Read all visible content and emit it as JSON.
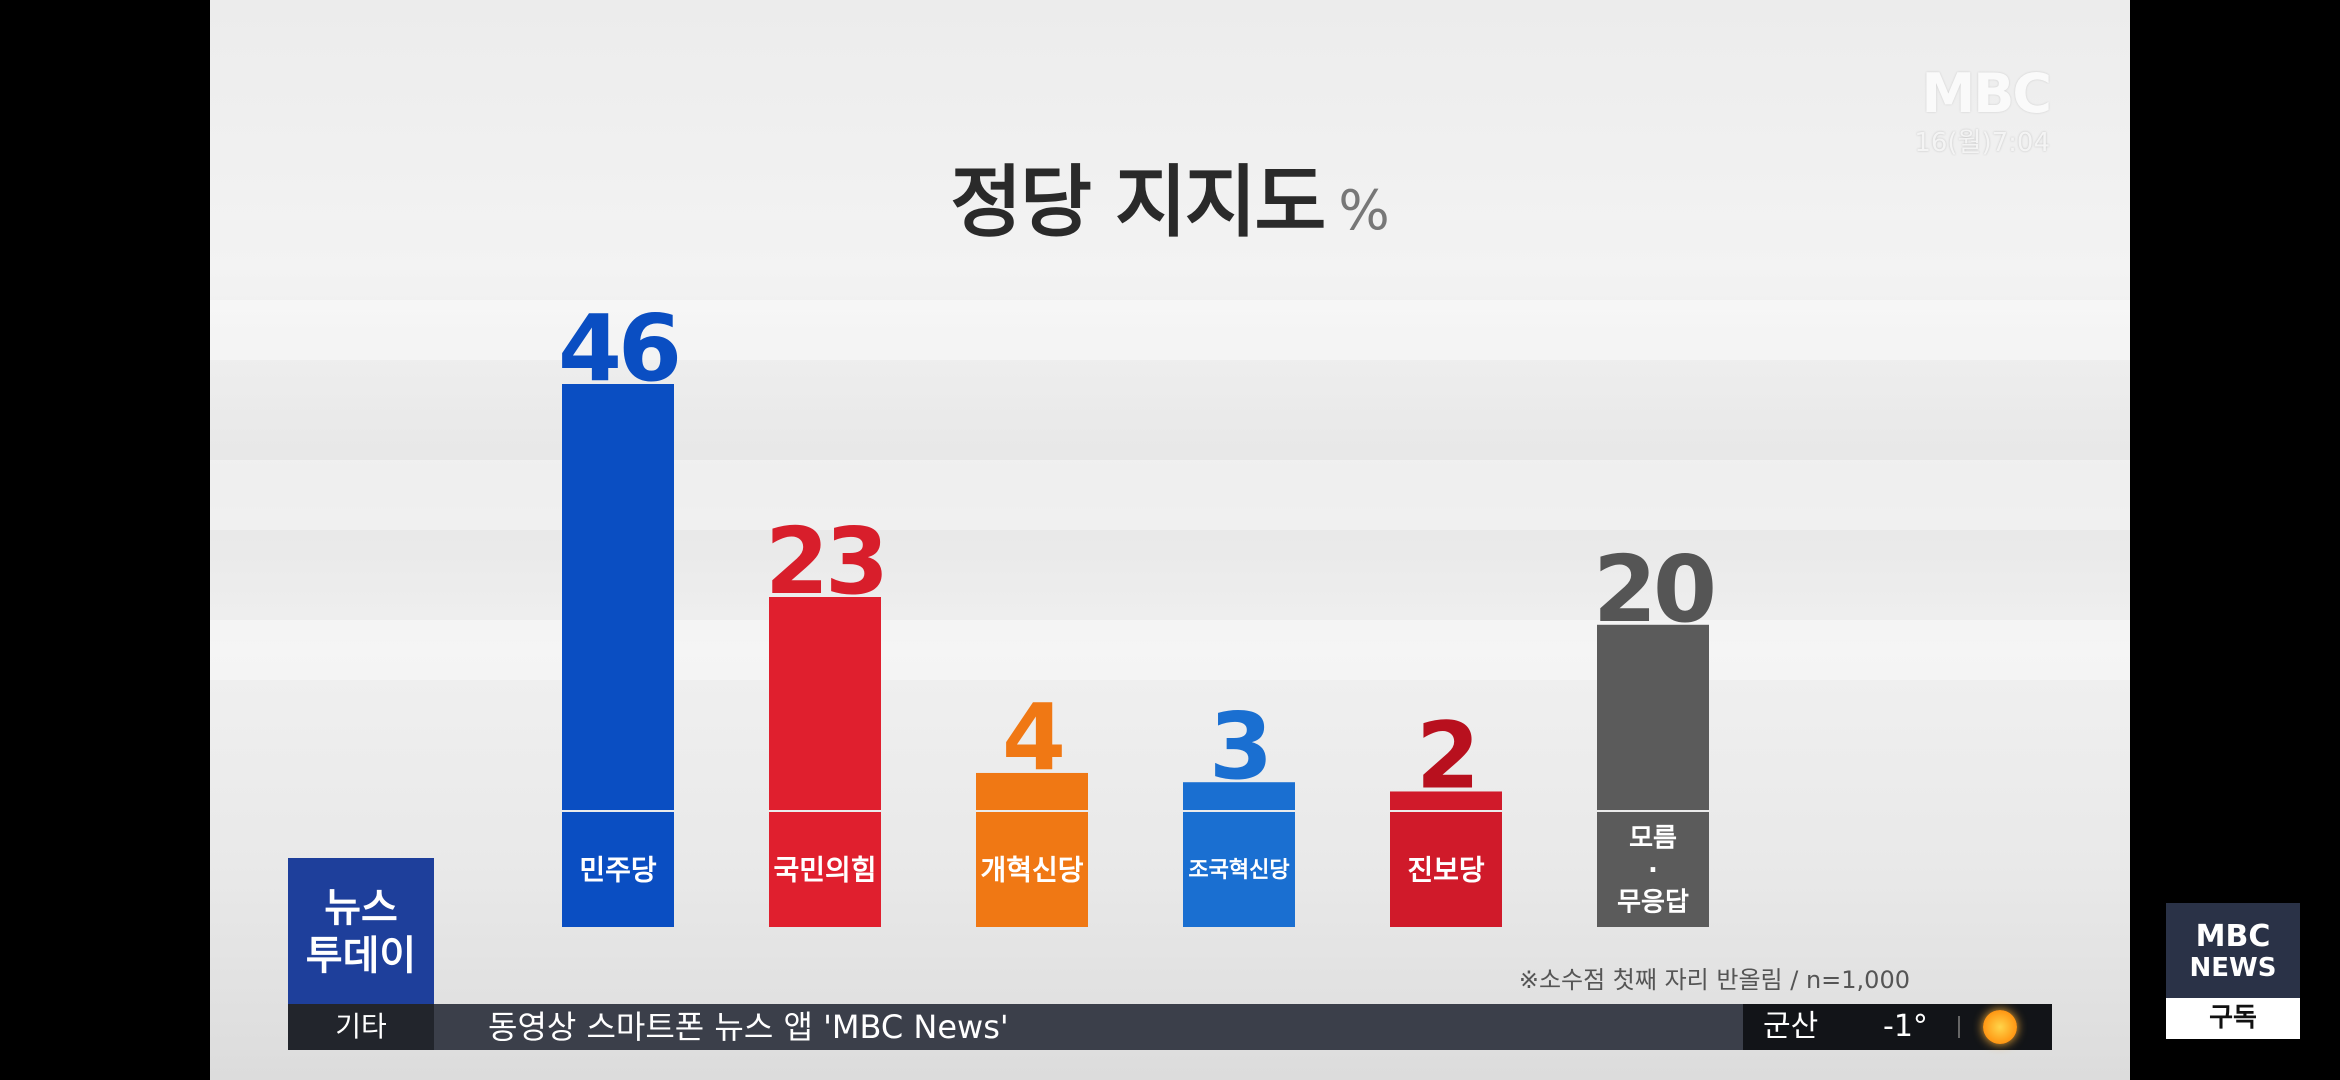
{
  "title": "정당 지지도",
  "title_unit": "%",
  "broadcaster": "MBC",
  "clock": "16(월)7:04",
  "note": "※소수점 첫째 자리 반올림 / n=1,000",
  "program": {
    "line1": "뉴스",
    "line2": "투데이"
  },
  "ticker": {
    "category": "기타",
    "text": "동영상 스마트폰 뉴스 앱 'MBC News'",
    "city": "군산",
    "temp": "-1°",
    "weather_icon": "sun-icon"
  },
  "news_badge": {
    "line1": "MBC",
    "line2": "NEWS",
    "subscribe": "구독"
  },
  "chart_data": {
    "type": "bar",
    "categories": [
      "더불어민주당",
      "국민의힘",
      "개혁신당",
      "조국혁신당",
      "진보당",
      "모름·무응답"
    ],
    "category_labels": [
      "민주당",
      "국민의힘",
      "개혁신당",
      "조국혁신당",
      "진보당",
      "모름\n·\n무응답"
    ],
    "values": [
      46,
      23,
      4,
      3,
      2,
      20
    ],
    "colors": [
      "#0a4ec2",
      "#e01f2e",
      "#f07814",
      "#1a6fd1",
      "#d01a2a",
      "#5b5b5b"
    ],
    "label_colors": [
      "#0a4ec2",
      "#d81e2b",
      "#f07814",
      "#1a6fd1",
      "#b8101e",
      "#555555"
    ],
    "title": "정당 지지도",
    "unit": "%",
    "ylim": [
      0,
      46
    ],
    "grid": false
  }
}
